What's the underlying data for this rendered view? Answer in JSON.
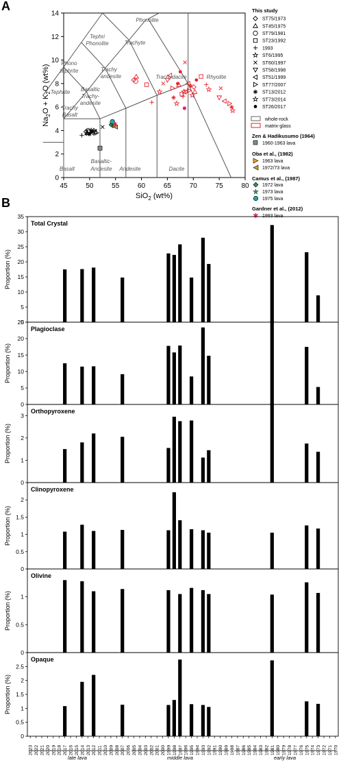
{
  "panel_a": {
    "letter": "A",
    "xlabel": "SiO",
    "xlabel_sub": "2",
    "xlabel_unit": " (wt%)",
    "ylabel_main": "Na",
    "ylabel_sub1": "2",
    "ylabel_mid": "O + K",
    "ylabel_sub2": "2",
    "ylabel_end": "O (wt%)",
    "xticks": [
      "45",
      "50",
      "55",
      "60",
      "65",
      "70",
      "75",
      "80"
    ],
    "yticks": [
      "0",
      "2",
      "4",
      "6",
      "8",
      "10",
      "12",
      "14"
    ],
    "field_labels": {
      "phonolite": "Phonolite",
      "tephri_phonolite_1": "Tephri",
      "tephri_phonolite_2": "Phonolite",
      "trachyte": "Trachyte",
      "phono_tephrite_1": "Phono",
      "phono_tephrite_2": "tephrite",
      "trachy_andesite_1": "Trachy",
      "trachy_andesite_2": "andesite",
      "trachydacite": "Trachydacite",
      "rhyolite": "Rhyolite",
      "tephrite": "Tephrite",
      "basaltic_trachy_1": "Basaltic",
      "basaltic_trachy_2": "Trachy-",
      "basaltic_trachy_3": "andesite",
      "trachy_basalt_1": "Trachy",
      "trachy_basalt_2": "Basalt",
      "basalt": "Basalt",
      "basaltic_andesite_1": "Basaltic-",
      "basaltic_andesite_2": "Andesite",
      "andesite": "Andesite",
      "dacite": "Dacite"
    },
    "legend": {
      "this_study": "This study",
      "items": [
        "ST75/1973",
        "ST45/1975",
        "ST79/1981",
        "ST23/1992",
        "1993",
        "ST6/1995",
        "ST60/1997",
        "ST58/1998",
        "ST51/1999",
        "ST77/2007",
        "ST13/2012",
        "ST73/2014",
        "ST26/2017"
      ],
      "whole_rock": "whole-rock",
      "matrix_glass": "matrix-glass",
      "zen_title": "Zen & Hadikusumo (1964)",
      "zen_item": "1960-1963 lava",
      "oba_title": "Oba et al., (1982)",
      "oba_items": [
        "1963 lava",
        "1972/73 lava"
      ],
      "camus_title": "Camus et al., (1987)",
      "camus_items": [
        "1972 lava",
        "1973 lava",
        "1975 lava"
      ],
      "gardner_title": "Gardner et al., (2012)",
      "gardner_item": "1993 lava"
    }
  },
  "panel_b": {
    "letter": "B",
    "ylabel": "Proportion (%)",
    "era_labels": [
      "late lava",
      "middle lava",
      "early lava"
    ],
    "years": [
      "2023",
      "2022",
      "2021",
      "2020",
      "2019",
      "2018",
      "2017",
      "2016",
      "2015",
      "2014",
      "2013",
      "2012",
      "2011",
      "2010",
      "2009",
      "2008",
      "2007",
      "2006",
      "2005",
      "2004",
      "2003",
      "2002",
      "2001",
      "2000",
      "1999",
      "1998",
      "1997",
      "1996",
      "1995",
      "1994",
      "1993",
      "1992",
      "1991",
      "1990",
      "1989",
      "1988",
      "1987",
      "1986",
      "1985",
      "1984",
      "1983",
      "1982",
      "1981",
      "1980",
      "1979",
      "1978",
      "1977",
      "1976",
      "1975",
      "1974",
      "1973",
      "1972",
      "1971",
      "1970"
    ]
  },
  "chart_data": [
    {
      "type": "scatter",
      "title": "",
      "xlabel": "SiO2 (wt%)",
      "ylabel": "Na2O + K2O (wt%)",
      "xlim": [
        45,
        80
      ],
      "ylim": [
        0,
        14
      ],
      "series": [
        {
          "name": "whole-rock (this study)",
          "points": [
            [
              49.3,
              3.9
            ],
            [
              49.5,
              3.8
            ],
            [
              49.7,
              4.0
            ],
            [
              49.9,
              3.9
            ],
            [
              50.1,
              3.8
            ],
            [
              50.3,
              4.0
            ],
            [
              50.5,
              3.9
            ],
            [
              50.7,
              3.8
            ],
            [
              51.0,
              3.9
            ],
            [
              51.3,
              3.8
            ],
            [
              50.0,
              3.7
            ],
            [
              49.6,
              3.75
            ],
            [
              50.8,
              4.0
            ],
            [
              48.5,
              3.6
            ],
            [
              52.5,
              4.3
            ],
            [
              52.0,
              2.5
            ]
          ]
        },
        {
          "name": "matrix-glass (this study)",
          "points": [
            [
              58.5,
              8.3
            ],
            [
              59.0,
              8.6
            ],
            [
              58.9,
              8.2
            ],
            [
              61.0,
              7.9
            ],
            [
              62.0,
              6.4
            ],
            [
              63.5,
              7.3
            ],
            [
              64.2,
              8.0
            ],
            [
              65.0,
              8.3
            ],
            [
              65.5,
              8.7
            ],
            [
              66.0,
              7.6
            ],
            [
              66.2,
              6.8
            ],
            [
              66.8,
              6.3
            ],
            [
              67.0,
              8.0
            ],
            [
              67.2,
              7.9
            ],
            [
              67.5,
              9.0
            ],
            [
              67.8,
              7.1
            ],
            [
              68.0,
              6.9
            ],
            [
              68.2,
              7.3
            ],
            [
              68.4,
              9.8
            ],
            [
              68.6,
              7.3
            ],
            [
              69.0,
              8.0
            ],
            [
              69.2,
              7.4
            ],
            [
              69.5,
              7.8
            ],
            [
              69.8,
              7.0
            ],
            [
              70.1,
              7.7
            ],
            [
              70.3,
              7.3
            ],
            [
              70.6,
              8.3
            ],
            [
              71.5,
              8.6
            ],
            [
              72.5,
              7.9
            ],
            [
              73.0,
              7.5
            ],
            [
              75.3,
              7.6
            ],
            [
              75.0,
              6.8
            ],
            [
              76.0,
              6.5
            ],
            [
              77.0,
              6.3
            ],
            [
              77.4,
              6.0
            ],
            [
              77.6,
              5.7
            ]
          ]
        },
        {
          "name": "1960-1963 lava",
          "points": [
            [
              52.0,
              2.5
            ]
          ]
        },
        {
          "name": "1963 lava",
          "points": [
            [
              54.8,
              4.4
            ]
          ]
        },
        {
          "name": "1972/73 lava",
          "points": [
            [
              55.0,
              4.3
            ]
          ]
        },
        {
          "name": "1972 lava",
          "points": [
            [
              54.2,
              4.5
            ]
          ]
        },
        {
          "name": "1973 lava",
          "points": [
            [
              54.6,
              4.6
            ]
          ]
        },
        {
          "name": "1975 lava",
          "points": [
            [
              54.4,
              4.75
            ]
          ]
        },
        {
          "name": "1993 lava",
          "points": [
            [
              54.9,
              4.55
            ],
            [
              68.3,
              5.9
            ]
          ]
        }
      ]
    },
    {
      "type": "bar",
      "title": "Total Crystal",
      "xlabel": "",
      "ylabel": "Proportion (%)",
      "ylim": [
        0,
        35
      ],
      "yticks": [
        0,
        5,
        10,
        15,
        20,
        25,
        30,
        35
      ],
      "categories": [
        "2017",
        "2014",
        "2012",
        "2007",
        "1999",
        "1998",
        "1997",
        "1995",
        "1993",
        "1992",
        "1981",
        "1975",
        "1973"
      ],
      "values": [
        17.5,
        17.6,
        18.1,
        14.8,
        22.8,
        22.3,
        25.8,
        14.8,
        28.0,
        19.3,
        32.2,
        23.2,
        8.9
      ]
    },
    {
      "type": "bar",
      "title": "Plagioclase",
      "xlabel": "",
      "ylabel": "Proportion (%)",
      "ylim": [
        0,
        25
      ],
      "yticks": [
        0,
        5,
        10,
        15,
        20,
        25
      ],
      "categories": [
        "2017",
        "2014",
        "2012",
        "2007",
        "1999",
        "1998",
        "1997",
        "1995",
        "1993",
        "1992",
        "1981",
        "1975",
        "1973"
      ],
      "values": [
        12.5,
        11.5,
        11.6,
        9.2,
        17.8,
        15.8,
        17.9,
        8.5,
        23.4,
        14.8,
        25.5,
        17.5,
        5.3
      ]
    },
    {
      "type": "bar",
      "title": "Orthopyroxene",
      "xlabel": "",
      "ylabel": "Proportion (%)",
      "ylim": [
        0,
        3.5
      ],
      "yticks": [
        0,
        1,
        2,
        3
      ],
      "categories": [
        "2017",
        "2014",
        "2012",
        "2007",
        "1999",
        "1998",
        "1997",
        "1995",
        "1993",
        "1992",
        "1981",
        "1975",
        "1973"
      ],
      "values": [
        1.5,
        1.8,
        2.2,
        2.05,
        1.55,
        2.95,
        2.75,
        2.78,
        1.12,
        1.45,
        3.55,
        1.75,
        1.38
      ]
    },
    {
      "type": "bar",
      "title": "Clinopyroxene",
      "xlabel": "",
      "ylabel": "Proportion (%)",
      "ylim": [
        0,
        2.5
      ],
      "yticks": [
        0,
        0.5,
        1.0,
        1.5,
        2.0
      ],
      "categories": [
        "2017",
        "2014",
        "2012",
        "2007",
        "1999",
        "1998",
        "1997",
        "1995",
        "1993",
        "1992",
        "1981",
        "1975",
        "1973"
      ],
      "values": [
        1.08,
        1.28,
        1.1,
        1.13,
        1.12,
        2.22,
        1.41,
        1.15,
        1.12,
        1.05,
        1.05,
        1.26,
        1.17
      ]
    },
    {
      "type": "bar",
      "title": "Olivine",
      "xlabel": "",
      "ylabel": "Proportion (%)",
      "ylim": [
        0,
        1.5
      ],
      "yticks": [
        0,
        0.5,
        1.0
      ],
      "categories": [
        "2017",
        "2014",
        "2012",
        "2007",
        "1999",
        "1998",
        "1997",
        "1995",
        "1993",
        "1992",
        "1981",
        "1975",
        "1973"
      ],
      "values": [
        1.3,
        1.28,
        1.1,
        1.14,
        1.12,
        0.0,
        1.05,
        1.16,
        1.12,
        1.05,
        1.04,
        1.26,
        1.07
      ]
    },
    {
      "type": "bar",
      "title": "Opaque",
      "xlabel": "",
      "ylabel": "Proportion (%)",
      "ylim": [
        0,
        3.0
      ],
      "yticks": [
        0,
        0.5,
        1.0,
        1.5,
        2.0,
        2.5
      ],
      "categories": [
        "2017",
        "2014",
        "2012",
        "2007",
        "1999",
        "1998",
        "1997",
        "1995",
        "1993",
        "1992",
        "1981",
        "1975",
        "1973"
      ],
      "values": [
        1.08,
        1.95,
        2.2,
        1.13,
        1.12,
        1.3,
        2.75,
        1.15,
        1.12,
        1.05,
        2.72,
        1.25,
        1.16
      ]
    }
  ]
}
